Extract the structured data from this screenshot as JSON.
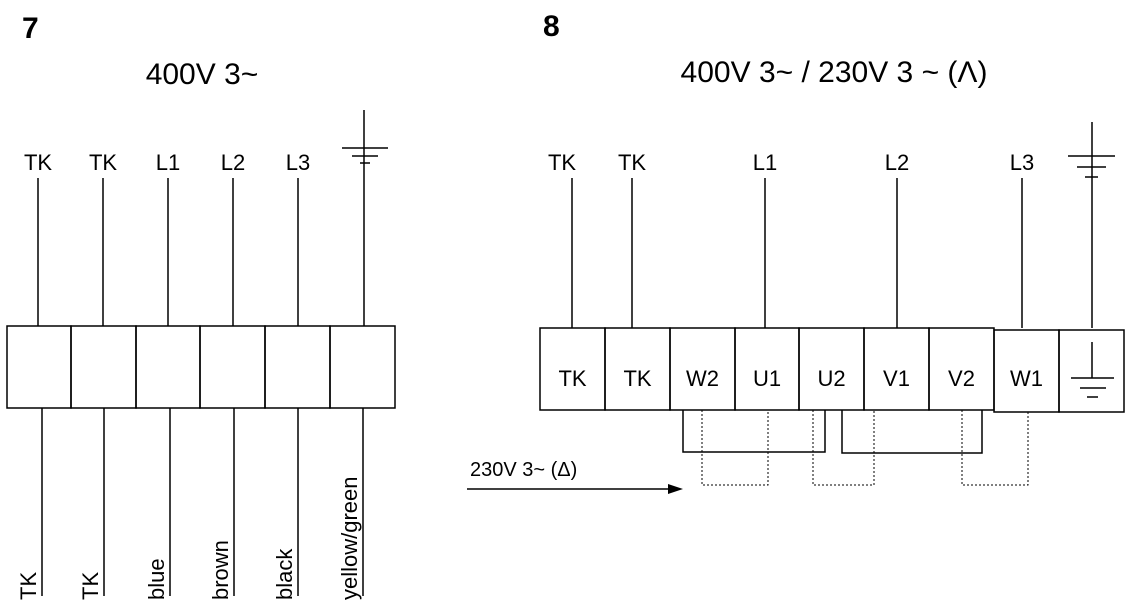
{
  "diagram7": {
    "number": "7",
    "title": "400V 3~",
    "top_labels": [
      "TK",
      "TK",
      "L1",
      "L2",
      "L3"
    ],
    "wire_colors": [
      "TK",
      "TK",
      "blue",
      "brown",
      "black",
      "yellow/green"
    ]
  },
  "diagram8": {
    "number": "8",
    "title": "400V 3~ / 230V 3 ~ (Λ)",
    "top_labels": [
      "TK",
      "TK",
      "L1",
      "L2",
      "L3"
    ],
    "terminals": [
      "TK",
      "TK",
      "W2",
      "U1",
      "U2",
      "V1",
      "V2",
      "W1"
    ],
    "delta_label": "230V 3~ (Δ)"
  }
}
